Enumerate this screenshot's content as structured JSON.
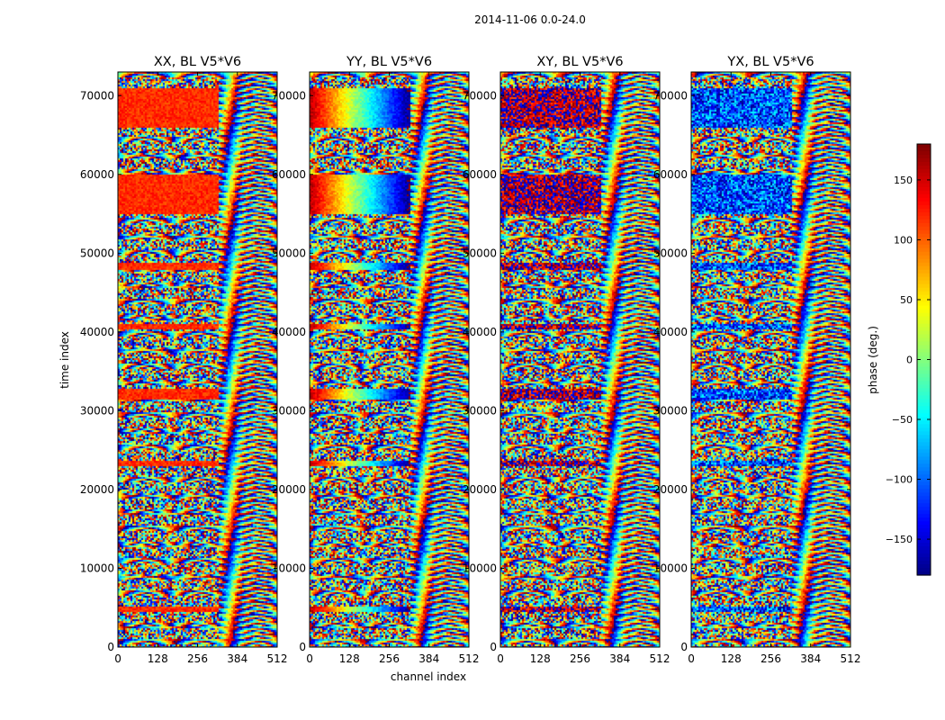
{
  "chart_data": {
    "type": "heatmap",
    "suptitle": "2014-11-06 0.0-24.0",
    "xlabel": "channel index",
    "ylabel": "time index",
    "xlim": [
      0,
      512
    ],
    "ylim": [
      0,
      73000
    ],
    "xticks": [
      0,
      128,
      256,
      384,
      512
    ],
    "yticks": [
      0,
      10000,
      20000,
      30000,
      40000,
      50000,
      60000,
      70000
    ],
    "panels": [
      {
        "title": "XX, BL V5*V6",
        "pol": "XX",
        "coherent_phase_deg": 120,
        "phase_trend": "flat"
      },
      {
        "title": "YY, BL V5*V6",
        "pol": "YY",
        "coherent_phase_deg": 150,
        "phase_trend": "red-to-blue across channels"
      },
      {
        "title": "XY, BL V5*V6",
        "pol": "XY",
        "coherent_phase_deg": 170,
        "phase_trend": "noisy"
      },
      {
        "title": "YX, BL V5*V6",
        "pol": "YX",
        "coherent_phase_deg": -110,
        "phase_trend": "noisy"
      }
    ],
    "coherent_time_bands": [
      [
        55000,
        60000
      ],
      [
        66000,
        71000
      ],
      [
        48000,
        48800
      ],
      [
        40500,
        41200
      ],
      [
        31500,
        33000
      ],
      [
        23000,
        23800
      ],
      [
        4500,
        5200
      ]
    ],
    "colorbar": {
      "label": "phase (deg.)",
      "range": [
        -180,
        180
      ],
      "ticks": [
        -150,
        -100,
        -50,
        0,
        50,
        100,
        150
      ],
      "tick_labels": [
        "−150",
        "−100",
        "−50",
        "0",
        "50",
        "100",
        "150"
      ],
      "colormap": "jet"
    }
  }
}
